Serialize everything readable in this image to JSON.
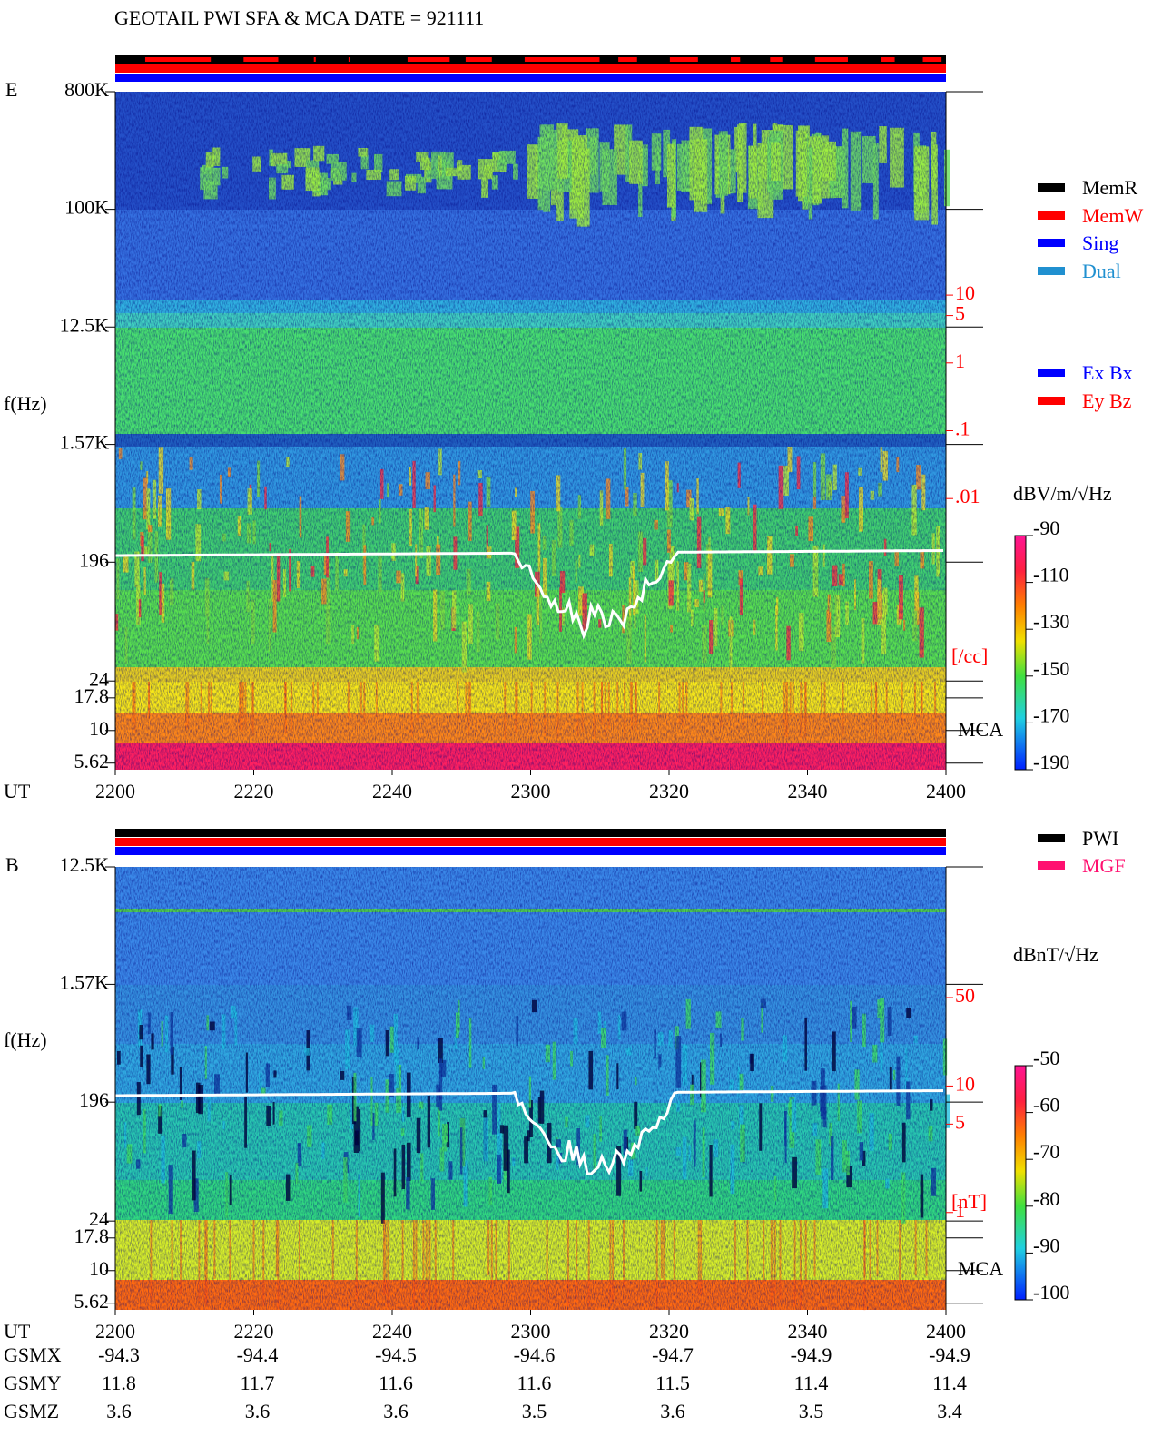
{
  "header": {
    "title": "GEOTAIL  PWI SFA & MCA   DATE = 921111"
  },
  "chart_data": [
    {
      "type": "spectrogram",
      "panel_label": "E",
      "ylabel": "f(Hz)",
      "xlabel": "UT",
      "categories": [
        "2200",
        "2220",
        "2240",
        "2300",
        "2320",
        "2340",
        "2400"
      ],
      "yscale": "log",
      "ylim": [
        5,
        800000
      ],
      "yticks": [
        {
          "value": 800000,
          "label": "800K"
        },
        {
          "value": 100000,
          "label": "100K"
        },
        {
          "value": 12500,
          "label": "12.5K"
        },
        {
          "value": 1570,
          "label": "1.57K"
        },
        196,
        24,
        17.8,
        10,
        5.62
      ],
      "y2scale": "log",
      "y2lim": [
        1e-06,
        10000
      ],
      "y2color": "#ff0000",
      "y2ticks": [
        10,
        5,
        1,
        {
          "value": 0.1,
          "label": ".1"
        },
        {
          "value": 0.01,
          "label": ".01"
        }
      ],
      "y2label": "[/cc]",
      "mca_label": "MCA",
      "colorbar": {
        "label": "dBV/m/√Hz",
        "clim": [
          -190,
          -90
        ],
        "ticks": [
          -90,
          -110,
          -130,
          -150,
          -170,
          -190
        ]
      },
      "legend": [
        {
          "name": "MemR",
          "color": "#000000"
        },
        {
          "name": "MemW",
          "color": "#ff0000"
        },
        {
          "name": "Sing",
          "color": "#0000ff"
        },
        {
          "name": "Dual",
          "color": "#2090d0"
        }
      ],
      "legend2": [
        {
          "name": "Ex Bx",
          "color": "#0000ff"
        },
        {
          "name": "Ey Bz",
          "color": "#ff0000"
        }
      ]
    },
    {
      "type": "spectrogram",
      "panel_label": "B",
      "ylabel": "f(Hz)",
      "xlabel": "UT",
      "categories": [
        "2200",
        "2220",
        "2240",
        "2300",
        "2320",
        "2340",
        "2400"
      ],
      "yscale": "log",
      "ylim": [
        5,
        12500
      ],
      "yticks": [
        {
          "value": 12500,
          "label": "12.5K"
        },
        {
          "value": 1570,
          "label": "1.57K"
        },
        196,
        24,
        17.8,
        10,
        5.62
      ],
      "y2scale": "log",
      "y2lim": [
        0.17,
        540
      ],
      "y2color": "#ff0000",
      "y2ticks": [
        50,
        10,
        5,
        1
      ],
      "y2label": "[nT]",
      "mca_label": "MCA",
      "colorbar": {
        "label": "dBnT/√Hz",
        "clim": [
          -100,
          -50
        ],
        "ticks": [
          -50,
          -60,
          -70,
          -80,
          -90,
          -100
        ]
      },
      "legend": [
        {
          "name": "PWI",
          "color": "#000000"
        },
        {
          "name": "MGF",
          "color": "#ff1070"
        }
      ]
    }
  ],
  "ephemeris": {
    "rows": [
      {
        "label": "GSMX",
        "values": [
          -94.3,
          -94.4,
          -94.5,
          -94.6,
          -94.7,
          -94.9,
          -94.9
        ]
      },
      {
        "label": "GSMY",
        "values": [
          11.8,
          11.7,
          11.6,
          11.6,
          11.5,
          11.4,
          11.4
        ]
      },
      {
        "label": "GSMZ",
        "values": [
          3.6,
          3.6,
          3.6,
          3.5,
          3.6,
          3.5,
          3.4
        ]
      }
    ]
  }
}
